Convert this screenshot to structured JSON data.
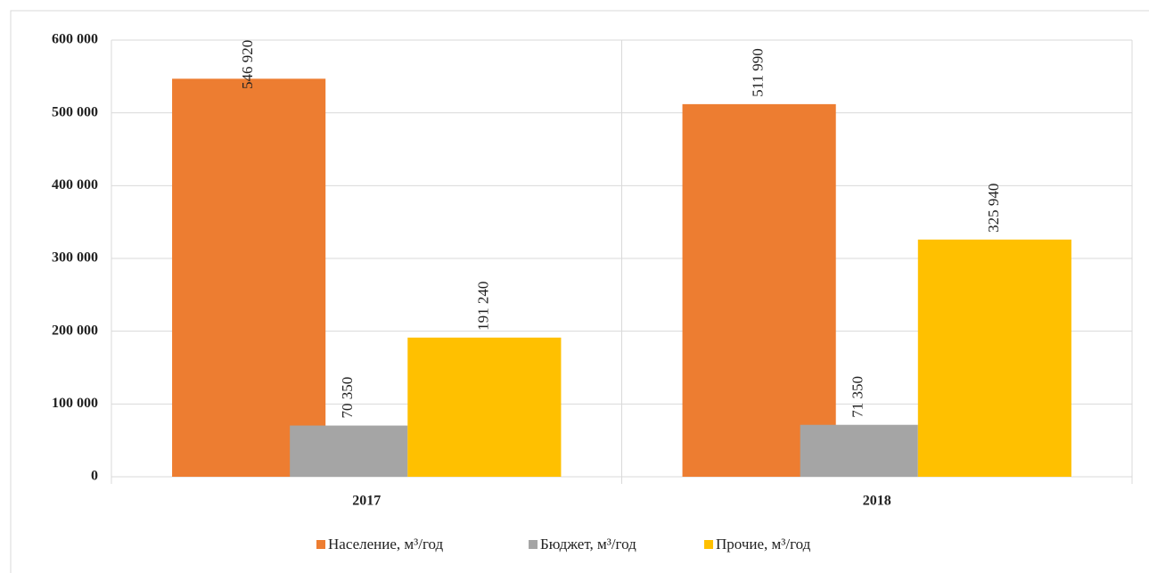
{
  "chart_data": {
    "type": "bar",
    "categories": [
      "2017",
      "2018"
    ],
    "series": [
      {
        "name": "Население, м³/год",
        "color": "#ED7D31",
        "values": [
          546920,
          511990
        ],
        "value_labels": [
          "546 920",
          "511 990"
        ]
      },
      {
        "name": "Бюджет, м³/год",
        "color": "#A5A5A5",
        "values": [
          70350,
          71350
        ],
        "value_labels": [
          "70 350",
          "71 350"
        ]
      },
      {
        "name": "Прочие, м³/год",
        "color": "#FFC000",
        "values": [
          191240,
          325940
        ],
        "value_labels": [
          "191 240",
          "325 940"
        ]
      }
    ],
    "ylim": [
      0,
      600000
    ],
    "yticks": [
      0,
      {
        "value": 100000,
        "label": "100 000"
      },
      {
        "value": 200000,
        "label": "200 000"
      },
      {
        "value": 300000,
        "label": "300 000"
      },
      {
        "value": 400000,
        "label": "400 000"
      },
      {
        "value": 500000,
        "label": "500 000"
      },
      {
        "value": 600000,
        "label": "600 000"
      }
    ],
    "grid": true
  }
}
